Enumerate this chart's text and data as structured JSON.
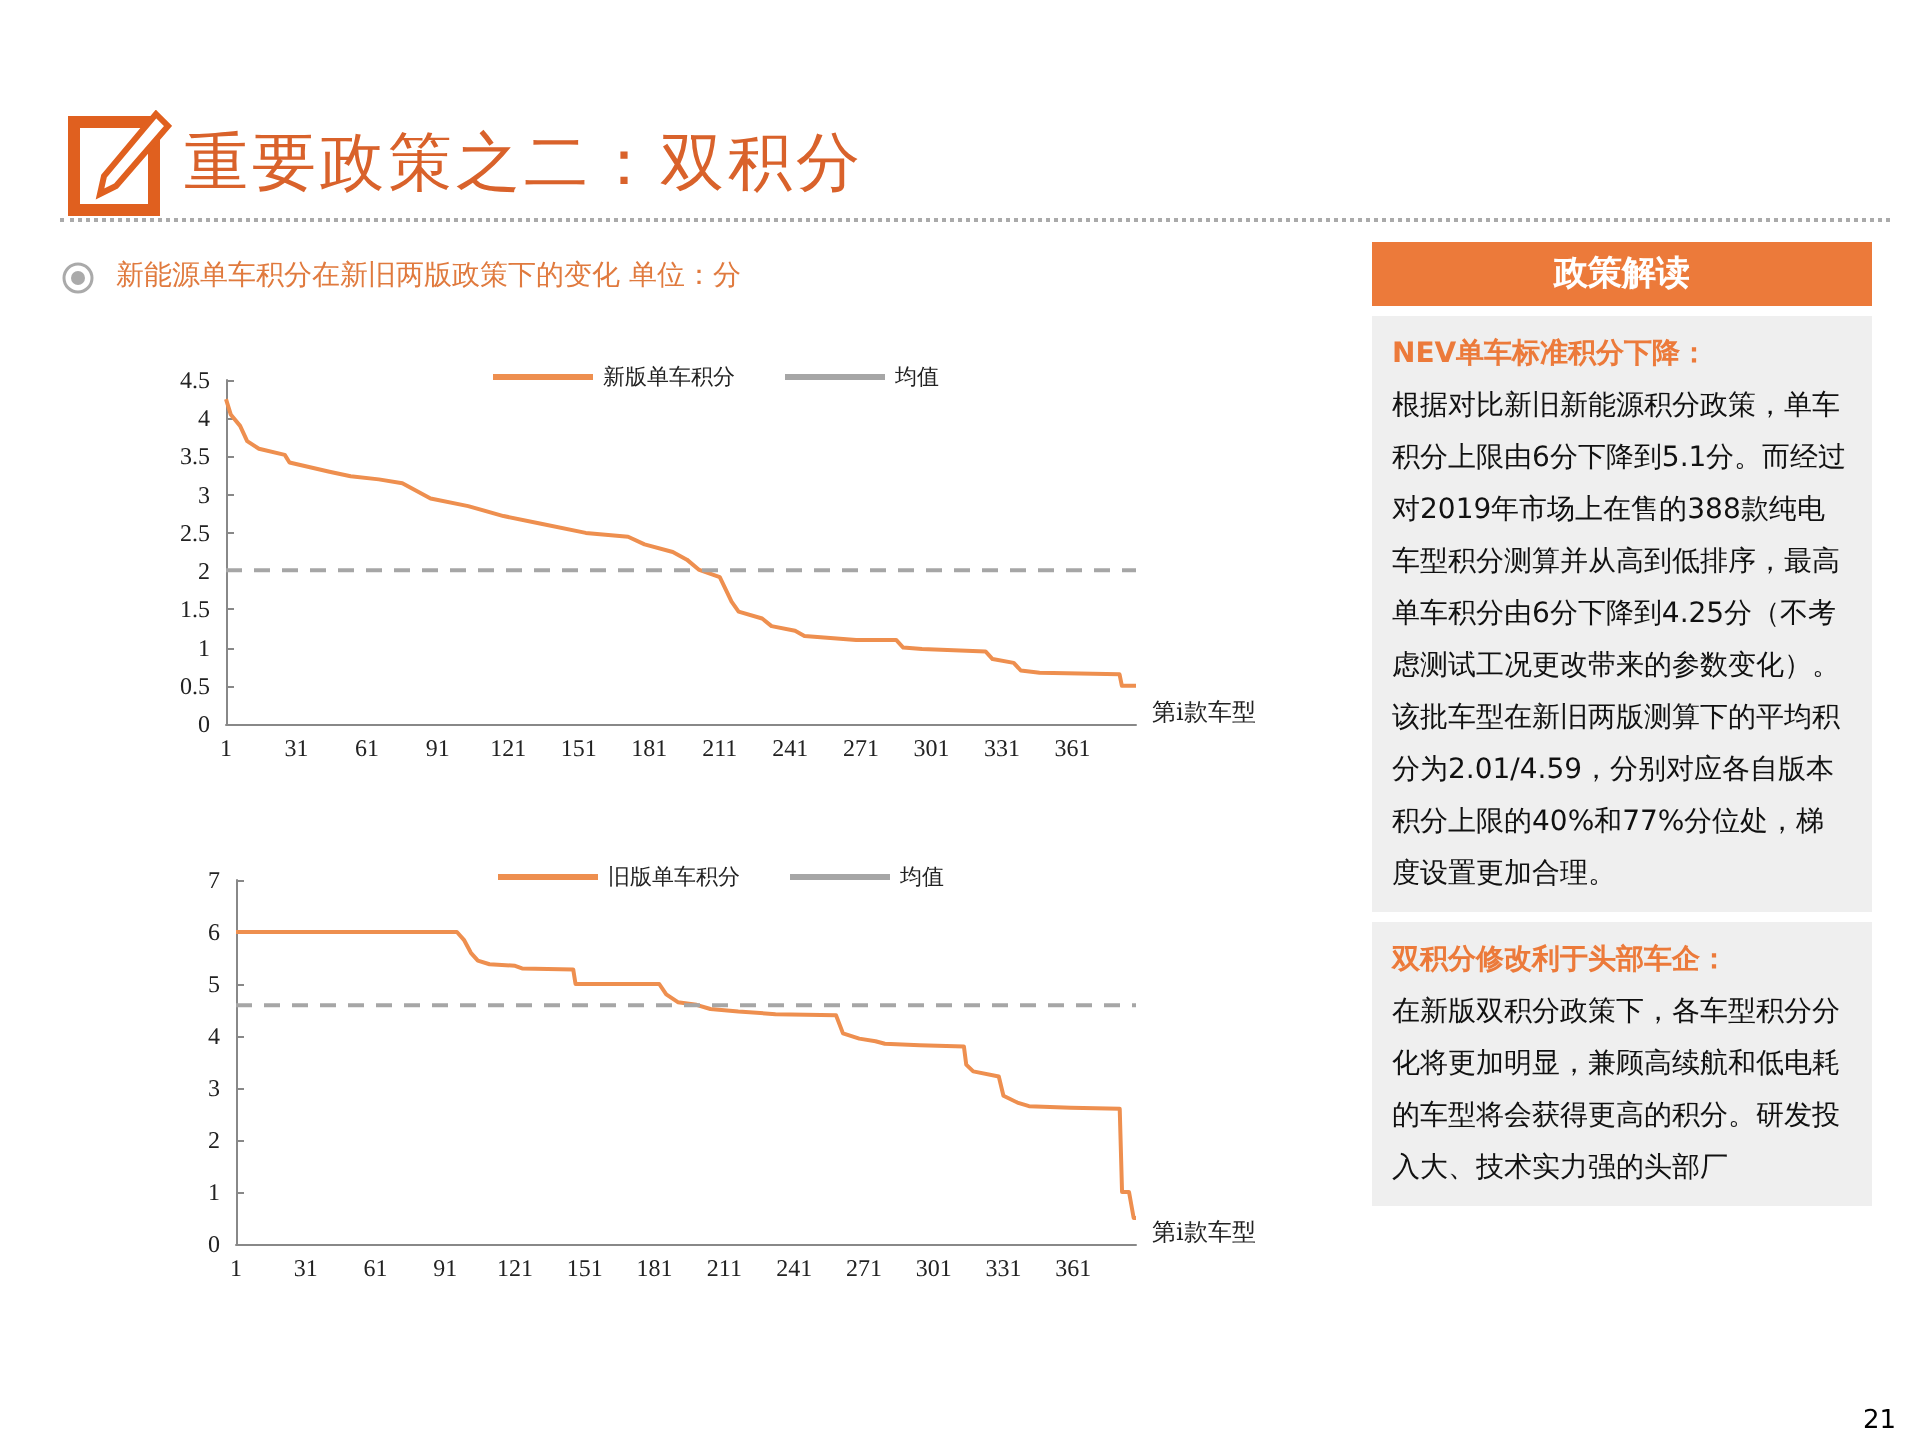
{
  "chart_data": [
    {
      "type": "line",
      "title": "重要政策之二：双积分",
      "subtitle": "新能源单车积分在新旧两版政策下的变化 单位：分",
      "xlabel": "第i款车型",
      "annotations": [
        "21"
      ],
      "xlim": [
        1,
        388
      ],
      "xticks": [
        1,
        31,
        61,
        91,
        121,
        151,
        181,
        211,
        241,
        271,
        301,
        331,
        361
      ],
      "ylim": [
        0,
        4.5
      ],
      "yticks": [
        0,
        0.5,
        1,
        1.5,
        2,
        2.5,
        3,
        3.5,
        4,
        4.5
      ],
      "grid": false,
      "legend": "top",
      "marker": "none",
      "series": [
        {
          "name": "新版单车积分",
          "color": "#ee8f4f",
          "line_style": "solid",
          "x": [
            1,
            3,
            7,
            10,
            15,
            26,
            28,
            45,
            54,
            66,
            76,
            88,
            104,
            119,
            135,
            154,
            172,
            179,
            191,
            197,
            202,
            211,
            216,
            219,
            229,
            233,
            243,
            247,
            269,
            286,
            289,
            297,
            324,
            327,
            336,
            339,
            347,
            381,
            382,
            388
          ],
          "values": [
            4.25,
            4.05,
            3.9,
            3.7,
            3.6,
            3.52,
            3.42,
            3.3,
            3.24,
            3.2,
            3.15,
            2.95,
            2.85,
            2.72,
            2.62,
            2.5,
            2.45,
            2.35,
            2.25,
            2.15,
            2.02,
            1.92,
            1.6,
            1.47,
            1.38,
            1.28,
            1.22,
            1.15,
            1.1,
            1.1,
            1.0,
            0.98,
            0.95,
            0.85,
            0.8,
            0.7,
            0.67,
            0.65,
            0.5,
            0.5
          ]
        },
        {
          "name": "均值",
          "color": "#a6a6a6",
          "line_style": "dashed",
          "x": [
            1,
            388
          ],
          "values": [
            2.01,
            2.01
          ]
        }
      ]
    },
    {
      "type": "line",
      "xlabel": "第i款车型",
      "xlim": [
        1,
        388
      ],
      "xticks": [
        1,
        31,
        61,
        91,
        121,
        151,
        181,
        211,
        241,
        271,
        301,
        331,
        361
      ],
      "ylim": [
        0,
        7
      ],
      "yticks": [
        0,
        1,
        2,
        3,
        4,
        5,
        6,
        7
      ],
      "grid": false,
      "legend": "top",
      "marker": "none",
      "series": [
        {
          "name": "旧版单车积分",
          "color": "#ee8f4f",
          "line_style": "solid",
          "x": [
            1,
            96,
            99,
            102,
            105,
            110,
            121,
            124,
            146,
            147,
            183,
            186,
            191,
            199,
            205,
            217,
            233,
            259,
            262,
            269,
            276,
            280,
            295,
            314,
            315,
            318,
            329,
            331,
            337,
            342,
            360,
            381,
            382,
            385,
            387,
            388
          ],
          "values": [
            6,
            6,
            5.85,
            5.6,
            5.45,
            5.38,
            5.35,
            5.3,
            5.28,
            5.0,
            5.0,
            4.8,
            4.65,
            4.6,
            4.52,
            4.47,
            4.42,
            4.4,
            4.05,
            3.95,
            3.9,
            3.85,
            3.82,
            3.8,
            3.45,
            3.32,
            3.22,
            2.85,
            2.72,
            2.65,
            2.62,
            2.6,
            1.0,
            1.0,
            0.5,
            0.5
          ]
        },
        {
          "name": "均值",
          "color": "#a6a6a6",
          "line_style": "dashed",
          "x": [
            1,
            388
          ],
          "values": [
            4.59,
            4.59
          ]
        }
      ]
    },
    {
      "type": "other",
      "title": "政策解读",
      "annotations": [
        "NEV单车标准积分下降：",
        "根据对比新旧新能源积分政策，单车积分上限由6分下降到5.1分。而经过对2019年市场上在售的388款纯电车型积分测算并从高到低排序，最高单车积分由6分下降到4.25分（不考虑测试工况更改带来的参数变化）。该批车型在新旧两版测算下的平均积分为2.01/4.59，分别对应各自版本积分上限的40%和77%分位处，梯度设置更加合理。",
        "双积分修改利于头部车企：",
        "在新版双积分政策下，各车型积分分化将更加明显，兼顾高续航和低电耗的车型将会获得更高的积分。研发投入大、技术实力强的头部厂"
      ]
    }
  ]
}
